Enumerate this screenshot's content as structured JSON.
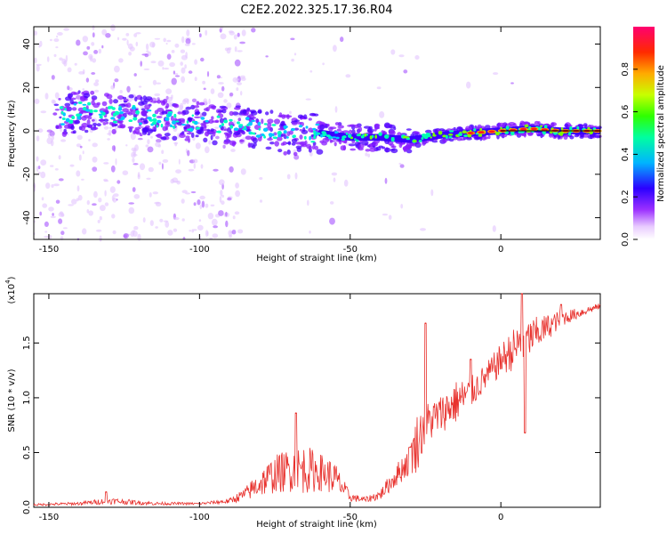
{
  "title": "C2E2.2022.325.17.36.R04",
  "chart_data": [
    {
      "type": "heatmap",
      "name": "spectrogram",
      "xlabel": "Height of straight line (km)",
      "ylabel": "Frequency (Hz)",
      "xlim": [
        -155,
        33
      ],
      "ylim": [
        -50,
        48
      ],
      "xticks": [
        -150,
        -100,
        -50,
        0
      ],
      "yticks": [
        -40,
        -20,
        0,
        20,
        40
      ],
      "ridge": {
        "x": [
          -148,
          -140,
          -130,
          -120,
          -110,
          -100,
          -90,
          -80,
          -70,
          -60,
          -50,
          -40,
          -30,
          -20,
          -10,
          0,
          10,
          20,
          33
        ],
        "freq": [
          6,
          9,
          8,
          7,
          5,
          4,
          3,
          1,
          -2,
          -1,
          -3,
          -3,
          -4,
          -2,
          -1,
          0,
          1,
          0,
          0
        ]
      },
      "colorbar": {
        "label": "Normalized spectral amplitude",
        "range": [
          0.0,
          1.0
        ],
        "ticks": [
          0.0,
          0.2,
          0.4,
          0.6,
          0.8
        ]
      }
    },
    {
      "type": "line",
      "name": "snr",
      "xlabel": "Height of straight line (km)",
      "ylabel": "SNR (10 * v/v)",
      "multiplier": "(x10",
      "multiplier_exp": "4",
      "multiplier_close": ")",
      "xlim": [
        -155,
        33
      ],
      "ylim": [
        0,
        1.95
      ],
      "xticks": [
        -150,
        -100,
        -50,
        0
      ],
      "yticks": [
        0.0,
        0.5,
        1.0,
        1.5
      ],
      "color": "#e8322e",
      "envelope": {
        "x": [
          -155,
          -140,
          -130,
          -115,
          -100,
          -90,
          -85,
          -80,
          -75,
          -70,
          -65,
          -60,
          -55,
          -50,
          -45,
          -40,
          -35,
          -30,
          -28,
          -25,
          -20,
          -15,
          -10,
          -5,
          0,
          5,
          10,
          15,
          20,
          25,
          33
        ],
        "base": [
          0.02,
          0.03,
          0.05,
          0.03,
          0.03,
          0.05,
          0.1,
          0.18,
          0.25,
          0.28,
          0.28,
          0.27,
          0.22,
          0.08,
          0.06,
          0.1,
          0.25,
          0.4,
          0.5,
          0.7,
          0.8,
          0.9,
          1.0,
          1.15,
          1.3,
          1.4,
          1.5,
          1.6,
          1.7,
          1.75,
          1.83
        ],
        "amp": [
          0.02,
          0.03,
          0.06,
          0.03,
          0.02,
          0.05,
          0.12,
          0.25,
          0.35,
          0.4,
          0.45,
          0.35,
          0.3,
          0.08,
          0.05,
          0.1,
          0.2,
          0.3,
          0.55,
          0.4,
          0.35,
          0.4,
          0.3,
          0.25,
          0.3,
          0.4,
          0.35,
          0.25,
          0.15,
          0.1,
          0.05
        ]
      },
      "points": [
        [
          -131,
          0.14
        ],
        [
          -68,
          0.86
        ],
        [
          -30,
          0.55
        ],
        [
          -25,
          1.68
        ],
        [
          -10,
          1.35
        ],
        [
          7,
          1.95
        ],
        [
          8,
          0.68
        ],
        [
          20,
          1.85
        ]
      ]
    }
  ]
}
